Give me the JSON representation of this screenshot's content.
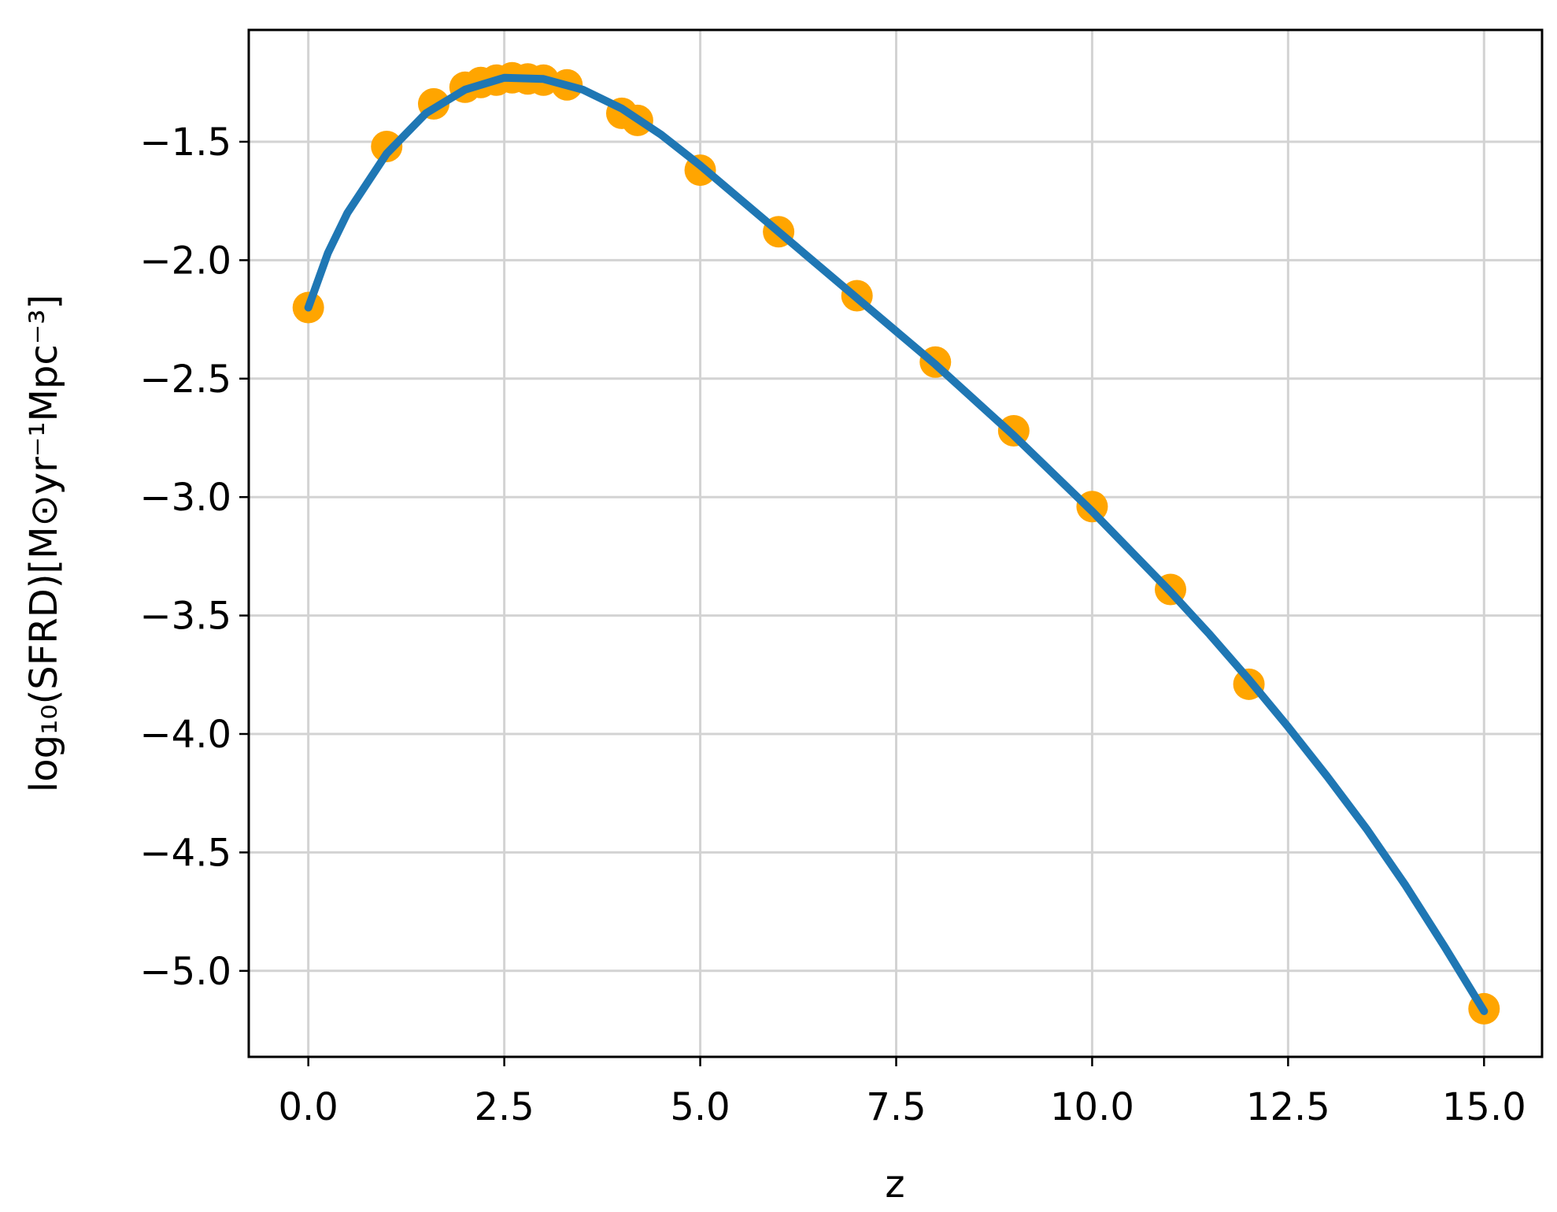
{
  "chart_data": {
    "type": "scatter",
    "xlabel": "z",
    "ylabel": "log₁₀(SFRD)[M⊙yr⁻¹Mpc⁻³]",
    "xlim": [
      -0.76,
      15.74
    ],
    "ylim": [
      -5.363,
      -1.028
    ],
    "xticks": [
      {
        "value": 0,
        "label": "0.0"
      },
      2.5,
      {
        "value": 5,
        "label": "5.0"
      },
      7.5,
      {
        "value": 10,
        "label": "10.0"
      },
      12.5,
      {
        "value": 15,
        "label": "15.0"
      }
    ],
    "yticks": [
      {
        "value": -1.5,
        "label": "−1.5"
      },
      {
        "value": -2.0,
        "label": "−2.0"
      },
      {
        "value": -2.5,
        "label": "−2.5"
      },
      {
        "value": -3.0,
        "label": "−3.0"
      },
      {
        "value": -3.5,
        "label": "−3.5"
      },
      {
        "value": -4.0,
        "label": "−4.0"
      },
      {
        "value": -4.5,
        "label": "−4.5"
      },
      {
        "value": -5.0,
        "label": "−5.0"
      }
    ],
    "grid": true,
    "series": [
      {
        "style": "markers",
        "color": "#ffa500",
        "x": [
          0,
          1,
          1.6,
          2.0,
          2.2,
          2.4,
          2.6,
          2.8,
          3.0,
          3.3,
          4.0,
          4.2,
          5,
          6,
          7,
          8,
          9,
          10,
          11,
          12,
          15
        ],
        "values": [
          -2.2,
          -1.52,
          -1.34,
          -1.27,
          -1.25,
          -1.24,
          -1.23,
          -1.235,
          -1.24,
          -1.26,
          -1.38,
          -1.41,
          -1.62,
          -1.88,
          -2.15,
          -2.43,
          -2.72,
          -3.04,
          -3.39,
          -3.79,
          -5.16
        ]
      },
      {
        "style": "line",
        "color": "#1f77b4",
        "x": [
          0,
          0.25,
          0.5,
          1.0,
          1.5,
          2.0,
          2.5,
          3.0,
          3.5,
          4.0,
          4.5,
          5.0,
          5.5,
          6.0,
          6.5,
          7.0,
          7.5,
          8.0,
          8.5,
          9.0,
          9.5,
          10.0,
          10.5,
          11.0,
          11.5,
          12.0,
          12.5,
          13.0,
          13.5,
          14.0,
          14.5,
          15.0
        ],
        "values": [
          -2.2,
          -1.97,
          -1.8,
          -1.55,
          -1.38,
          -1.28,
          -1.23,
          -1.235,
          -1.28,
          -1.36,
          -1.47,
          -1.6,
          -1.74,
          -1.88,
          -2.02,
          -2.16,
          -2.3,
          -2.44,
          -2.59,
          -2.74,
          -2.9,
          -3.06,
          -3.23,
          -3.4,
          -3.58,
          -3.77,
          -3.97,
          -4.18,
          -4.4,
          -4.64,
          -4.9,
          -5.17
        ]
      }
    ]
  }
}
